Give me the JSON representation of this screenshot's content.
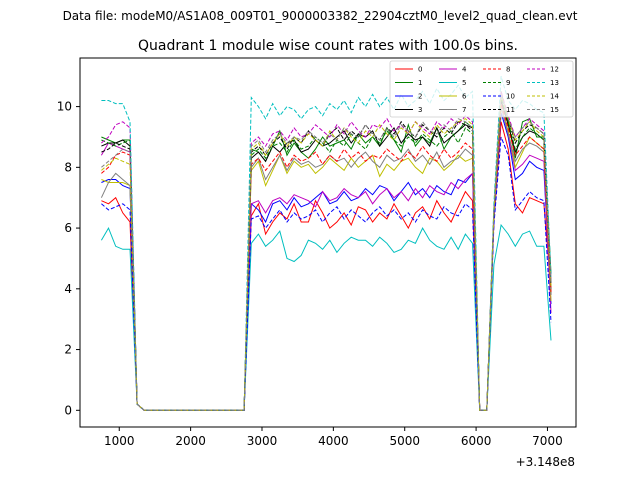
{
  "figure": {
    "suptitle": "Data file: modeM0/AS1A08_009T01_9000003382_22904cztM0_level2_quad_clean.evt"
  },
  "chart_data": {
    "type": "line",
    "title": "Quadrant 1 module wise count rates with 100.0s bins.",
    "xlabel": "",
    "ylabel": "",
    "x_offset_label": "+3.148e8",
    "xlim": [
      450,
      7400
    ],
    "ylim": [
      -0.55,
      11.6
    ],
    "xticks": [
      1000,
      2000,
      3000,
      4000,
      5000,
      6000,
      7000
    ],
    "yticks": [
      0,
      2,
      4,
      6,
      8,
      10
    ],
    "grid": false,
    "legend": {
      "location": "top-right",
      "columns": 4
    },
    "x": [
      750,
      850,
      950,
      1050,
      1150,
      1250,
      1350,
      1450,
      1550,
      1650,
      1750,
      1850,
      1950,
      2050,
      2150,
      2250,
      2350,
      2450,
      2550,
      2650,
      2750,
      2850,
      2950,
      3050,
      3150,
      3250,
      3350,
      3450,
      3550,
      3650,
      3750,
      3850,
      3950,
      4050,
      4150,
      4250,
      4350,
      4450,
      4550,
      4650,
      4750,
      4850,
      4950,
      5050,
      5150,
      5250,
      5350,
      5450,
      5550,
      5650,
      5750,
      5850,
      5950,
      6050,
      6150,
      6250,
      6350,
      6450,
      6550,
      6650,
      6750,
      6850,
      6950,
      7050
    ],
    "series": [
      {
        "name": "0",
        "color": "#ff0000",
        "dash": false,
        "values": [
          6.9,
          6.8,
          7.0,
          6.5,
          6.2,
          0.2,
          0,
          0,
          0,
          0,
          0,
          0,
          0,
          0,
          0,
          0,
          0,
          0,
          0,
          0,
          0,
          6.4,
          6.8,
          5.8,
          6.2,
          6.5,
          6.3,
          6.8,
          6.2,
          6.2,
          6.9,
          6.5,
          6.0,
          6.2,
          6.5,
          6.1,
          6.7,
          6.6,
          6.2,
          6.5,
          6.3,
          6.8,
          6.4,
          6.0,
          6.5,
          6.7,
          6.3,
          6.9,
          6.5,
          6.2,
          6.7,
          7.2,
          6.9,
          0,
          0,
          6.2,
          9.5,
          8.6,
          6.8,
          6.5,
          7.0,
          6.9,
          6.8,
          4.0
        ]
      },
      {
        "name": "1",
        "color": "#008000",
        "dash": false,
        "values": [
          9.0,
          8.9,
          8.8,
          8.9,
          8.9,
          0.2,
          0,
          0,
          0,
          0,
          0,
          0,
          0,
          0,
          0,
          0,
          0,
          0,
          0,
          0,
          0,
          8.6,
          8.5,
          8.2,
          8.7,
          9.2,
          8.4,
          8.8,
          8.5,
          8.3,
          8.6,
          9.0,
          8.7,
          8.8,
          8.9,
          8.6,
          9.1,
          8.8,
          9.0,
          8.7,
          9.3,
          8.9,
          8.5,
          9.4,
          8.7,
          9.0,
          8.8,
          9.3,
          8.6,
          9.0,
          9.2,
          9.5,
          9.3,
          0,
          0,
          6.5,
          10.5,
          9.5,
          8.3,
          9.5,
          9.6,
          9.0,
          9.0,
          4.5
        ]
      },
      {
        "name": "2",
        "color": "#0000ff",
        "dash": false,
        "values": [
          7.5,
          7.6,
          7.6,
          7.4,
          7.3,
          0.2,
          0,
          0,
          0,
          0,
          0,
          0,
          0,
          0,
          0,
          0,
          0,
          0,
          0,
          0,
          0,
          6.8,
          6.6,
          6.2,
          6.8,
          6.9,
          6.6,
          7.0,
          6.7,
          6.8,
          7.0,
          7.2,
          6.8,
          6.9,
          7.2,
          6.9,
          7.0,
          7.3,
          7.1,
          7.4,
          7.3,
          6.9,
          7.2,
          7.5,
          7.1,
          7.3,
          7.0,
          7.4,
          7.2,
          7.1,
          7.6,
          7.5,
          7.8,
          0,
          0,
          6.3,
          9.8,
          9.0,
          7.6,
          7.8,
          8.2,
          8.0,
          7.9,
          3.5
        ]
      },
      {
        "name": "3",
        "color": "#000000",
        "dash": false,
        "values": [
          8.7,
          8.8,
          8.8,
          8.9,
          8.7,
          0.2,
          0,
          0,
          0,
          0,
          0,
          0,
          0,
          0,
          0,
          0,
          0,
          0,
          0,
          0,
          0,
          8.3,
          8.5,
          8.2,
          8.7,
          8.5,
          8.8,
          8.9,
          8.5,
          8.6,
          8.9,
          8.7,
          8.8,
          9.0,
          9.2,
          8.8,
          9.1,
          9.0,
          9.2,
          8.7,
          9.0,
          9.3,
          8.8,
          9.1,
          8.9,
          9.0,
          8.7,
          9.3,
          8.8,
          9.0,
          9.2,
          9.4,
          9.3,
          0,
          0,
          6.4,
          10.2,
          9.4,
          8.5,
          9.0,
          9.2,
          9.1,
          8.9,
          3.8
        ]
      },
      {
        "name": "4",
        "color": "#bf00bf",
        "dash": false,
        "values": [
          8.4,
          8.8,
          8.7,
          8.6,
          8.5,
          0.2,
          0,
          0,
          0,
          0,
          0,
          0,
          0,
          0,
          0,
          0,
          0,
          0,
          0,
          0,
          0,
          6.8,
          6.9,
          6.5,
          6.9,
          7.0,
          6.8,
          7.1,
          7.0,
          6.9,
          6.7,
          7.2,
          6.9,
          7.0,
          7.3,
          7.1,
          7.0,
          7.2,
          6.8,
          7.1,
          7.3,
          7.0,
          7.2,
          6.9,
          7.3,
          7.0,
          7.4,
          7.2,
          7.1,
          7.5,
          7.3,
          7.6,
          7.8,
          0,
          0,
          6.3,
          10.0,
          9.1,
          7.9,
          8.1,
          8.4,
          8.3,
          8.2,
          3.2
        ]
      },
      {
        "name": "5",
        "color": "#00bfbf",
        "dash": false,
        "values": [
          5.6,
          6.0,
          5.4,
          5.3,
          5.3,
          0.2,
          0,
          0,
          0,
          0,
          0,
          0,
          0,
          0,
          0,
          0,
          0,
          0,
          0,
          0,
          0,
          5.5,
          5.8,
          5.4,
          5.6,
          5.9,
          5.0,
          4.9,
          5.1,
          5.6,
          5.5,
          5.3,
          5.6,
          5.2,
          5.5,
          5.7,
          5.6,
          5.6,
          5.4,
          5.7,
          5.5,
          5.2,
          5.3,
          5.6,
          5.5,
          6.0,
          5.6,
          5.4,
          5.3,
          5.7,
          5.3,
          5.8,
          5.5,
          0,
          0,
          4.8,
          6.1,
          5.8,
          5.4,
          5.8,
          5.9,
          5.4,
          5.4,
          2.3
        ]
      },
      {
        "name": "6",
        "color": "#bfbf00",
        "dash": false,
        "values": [
          7.6,
          7.5,
          7.5,
          7.5,
          7.4,
          0.2,
          0,
          0,
          0,
          0,
          0,
          0,
          0,
          0,
          0,
          0,
          0,
          0,
          0,
          0,
          0,
          7.9,
          8.2,
          7.4,
          7.9,
          8.4,
          7.8,
          8.2,
          8.0,
          8.1,
          7.8,
          8.0,
          8.3,
          8.1,
          7.9,
          8.3,
          8.0,
          8.2,
          8.4,
          7.7,
          8.1,
          7.9,
          8.2,
          8.3,
          8.0,
          7.8,
          8.3,
          8.2,
          7.9,
          8.1,
          8.4,
          8.2,
          8.3,
          0,
          0,
          6.4,
          10.0,
          9.2,
          8.0,
          8.5,
          9.0,
          8.8,
          8.6,
          3.6
        ]
      },
      {
        "name": "7",
        "color": "#808080",
        "dash": false,
        "values": [
          7.0,
          7.5,
          7.8,
          7.6,
          7.4,
          0.2,
          0,
          0,
          0,
          0,
          0,
          0,
          0,
          0,
          0,
          0,
          0,
          0,
          0,
          0,
          0,
          8.0,
          8.3,
          7.6,
          8.0,
          8.4,
          7.9,
          8.3,
          8.1,
          8.2,
          8.0,
          8.1,
          8.4,
          8.2,
          8.3,
          8.0,
          8.3,
          8.5,
          8.2,
          8.0,
          8.4,
          8.2,
          8.3,
          8.6,
          8.2,
          8.4,
          8.1,
          8.5,
          8.0,
          8.2,
          8.3,
          8.6,
          8.4,
          0,
          0,
          6.4,
          10.0,
          9.1,
          8.2,
          8.6,
          8.8,
          8.7,
          8.5,
          3.8
        ]
      },
      {
        "name": "8",
        "color": "#ff0000",
        "dash": true,
        "values": [
          7.8,
          8.0,
          8.4,
          8.5,
          8.4,
          0.2,
          0,
          0,
          0,
          0,
          0,
          0,
          0,
          0,
          0,
          0,
          0,
          0,
          0,
          0,
          0,
          8.1,
          8.3,
          7.9,
          8.2,
          8.5,
          8.0,
          8.4,
          8.2,
          8.3,
          8.5,
          8.1,
          8.4,
          8.2,
          8.6,
          8.3,
          8.5,
          8.2,
          8.4,
          8.3,
          8.6,
          8.4,
          8.2,
          8.5,
          8.3,
          8.7,
          8.4,
          8.2,
          8.6,
          8.3,
          8.5,
          8.8,
          8.6,
          0,
          0,
          6.4,
          10.1,
          9.3,
          8.4,
          8.7,
          9.0,
          8.8,
          8.6,
          3.9
        ]
      },
      {
        "name": "9",
        "color": "#008000",
        "dash": true,
        "values": [
          8.9,
          8.8,
          8.7,
          8.8,
          8.9,
          0.2,
          0,
          0,
          0,
          0,
          0,
          0,
          0,
          0,
          0,
          0,
          0,
          0,
          0,
          0,
          0,
          8.4,
          8.6,
          8.3,
          8.7,
          8.8,
          8.5,
          8.9,
          8.6,
          8.7,
          9.0,
          8.8,
          8.5,
          8.9,
          8.7,
          9.1,
          8.8,
          8.6,
          9.0,
          8.8,
          9.2,
          8.9,
          8.7,
          9.0,
          8.8,
          9.1,
          8.9,
          8.7,
          9.0,
          9.2,
          8.8,
          9.3,
          9.1,
          0,
          0,
          6.5,
          10.3,
          9.5,
          8.6,
          9.0,
          9.3,
          9.1,
          8.9,
          4.1
        ]
      },
      {
        "name": "10",
        "color": "#0000ff",
        "dash": true,
        "values": [
          6.8,
          6.6,
          6.7,
          6.8,
          6.6,
          0.2,
          0,
          0,
          0,
          0,
          0,
          0,
          0,
          0,
          0,
          0,
          0,
          0,
          0,
          0,
          0,
          6.3,
          6.4,
          6.0,
          6.3,
          6.6,
          6.2,
          6.5,
          6.3,
          6.4,
          6.6,
          6.2,
          6.5,
          6.7,
          6.3,
          6.6,
          6.4,
          6.2,
          6.5,
          6.7,
          6.4,
          6.6,
          6.3,
          6.5,
          6.2,
          6.6,
          6.4,
          6.3,
          6.7,
          6.5,
          6.4,
          6.8,
          6.6,
          0,
          0,
          6.1,
          9.0,
          8.4,
          6.6,
          6.9,
          7.2,
          7.0,
          6.9,
          2.9
        ]
      },
      {
        "name": "11",
        "color": "#000000",
        "dash": true,
        "values": [
          8.5,
          8.6,
          8.8,
          8.7,
          8.6,
          0.2,
          0,
          0,
          0,
          0,
          0,
          0,
          0,
          0,
          0,
          0,
          0,
          0,
          0,
          0,
          0,
          8.5,
          8.7,
          8.4,
          8.8,
          9.0,
          8.6,
          9.0,
          8.8,
          9.2,
          8.9,
          8.7,
          9.1,
          9.3,
          8.9,
          9.2,
          9.0,
          9.4,
          9.1,
          8.9,
          9.3,
          9.1,
          9.5,
          9.2,
          9.0,
          9.4,
          9.2,
          9.0,
          9.3,
          9.1,
          9.5,
          9.4,
          9.2,
          0,
          0,
          6.6,
          10.4,
          9.6,
          8.8,
          9.2,
          9.4,
          9.3,
          9.1,
          4.2
        ]
      },
      {
        "name": "12",
        "color": "#bf00bf",
        "dash": true,
        "values": [
          8.8,
          9.0,
          9.4,
          9.5,
          9.3,
          0.2,
          0,
          0,
          0,
          0,
          0,
          0,
          0,
          0,
          0,
          0,
          0,
          0,
          0,
          0,
          0,
          8.8,
          9.0,
          8.7,
          9.1,
          9.2,
          8.9,
          9.3,
          9.0,
          9.1,
          9.4,
          9.2,
          9.0,
          9.4,
          9.1,
          9.5,
          9.2,
          9.0,
          9.4,
          9.3,
          9.6,
          9.2,
          9.4,
          9.1,
          9.5,
          9.3,
          9.1,
          9.5,
          9.3,
          9.6,
          9.4,
          9.7,
          9.5,
          0,
          0,
          6.6,
          10.5,
          9.7,
          9.0,
          9.3,
          9.6,
          9.4,
          9.2,
          4.3
        ]
      },
      {
        "name": "13",
        "color": "#00bfbf",
        "dash": true,
        "values": [
          10.2,
          10.2,
          10.1,
          10.1,
          9.5,
          0.2,
          0,
          0,
          0,
          0,
          0,
          0,
          0,
          0,
          0,
          0,
          0,
          0,
          0,
          0,
          0,
          10.3,
          10.0,
          9.6,
          10.1,
          9.7,
          10.0,
          9.9,
          9.6,
          9.9,
          10.0,
          9.7,
          10.1,
          9.9,
          10.2,
          9.8,
          10.3,
          10.0,
          10.4,
          10.0,
          10.3,
          9.9,
          10.4,
          10.0,
          10.2,
          10.5,
          10.1,
          10.6,
          10.2,
          10.4,
          10.7,
          10.3,
          10.5,
          0,
          0,
          6.8,
          11.0,
          10.2,
          9.9,
          10.2,
          10.1,
          9.9,
          9.8,
          4.4
        ]
      },
      {
        "name": "14",
        "color": "#bfbf00",
        "dash": true,
        "values": [
          7.9,
          8.1,
          8.3,
          8.2,
          8.1,
          0.2,
          0,
          0,
          0,
          0,
          0,
          0,
          0,
          0,
          0,
          0,
          0,
          0,
          0,
          0,
          0,
          8.6,
          8.8,
          8.4,
          8.8,
          9.1,
          8.7,
          9.0,
          8.8,
          9.1,
          8.9,
          8.7,
          9.2,
          8.9,
          9.3,
          9.0,
          8.8,
          9.2,
          9.0,
          9.4,
          9.1,
          8.9,
          9.3,
          9.1,
          9.5,
          9.2,
          9.0,
          9.4,
          9.1,
          9.3,
          9.5,
          9.6,
          9.4,
          0,
          0,
          6.5,
          10.4,
          9.6,
          8.9,
          9.2,
          9.5,
          9.2,
          9.0,
          4.1
        ]
      },
      {
        "name": "15",
        "color": "#808080",
        "dash": true,
        "values": [
          8.0,
          8.2,
          8.4,
          8.6,
          8.5,
          0.2,
          0,
          0,
          0,
          0,
          0,
          0,
          0,
          0,
          0,
          0,
          0,
          0,
          0,
          0,
          0,
          8.7,
          8.9,
          8.5,
          8.9,
          9.1,
          8.8,
          9.0,
          8.9,
          9.2,
          9.0,
          8.8,
          9.1,
          8.9,
          9.3,
          9.1,
          9.0,
          9.4,
          9.1,
          8.9,
          9.3,
          9.0,
          9.4,
          9.2,
          9.0,
          9.5,
          9.2,
          9.1,
          9.4,
          9.2,
          9.6,
          9.5,
          9.3,
          0,
          0,
          6.5,
          10.4,
          9.6,
          9.0,
          9.3,
          9.5,
          9.3,
          9.1,
          4.2
        ]
      }
    ]
  }
}
